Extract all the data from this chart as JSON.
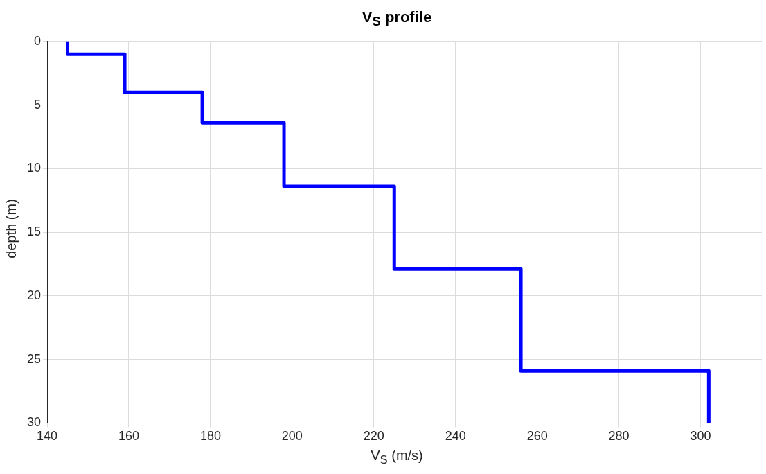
{
  "chart_data": {
    "type": "line",
    "title": "V$_{S}$ profile",
    "xlabel": "V$_{S}$ (m/s)",
    "ylabel": "depth (m)",
    "series": [
      {
        "color": "#0000ff",
        "x": [
          145,
          145,
          159,
          159,
          178,
          178,
          198,
          198,
          225,
          225,
          256,
          256,
          302,
          302
        ],
        "values": [
          0,
          1,
          1,
          4,
          4,
          6.4,
          6.4,
          11.4,
          11.4,
          17.9,
          17.9,
          25.9,
          25.9,
          30
        ]
      }
    ],
    "xlim": [
      140,
      315
    ],
    "xticks": [
      140,
      160,
      180,
      200,
      220,
      240,
      260,
      280,
      300
    ],
    "ylim": [
      30,
      0
    ],
    "yticks": [
      0,
      5,
      10,
      15,
      20,
      25,
      30
    ],
    "grid": true,
    "legend": false,
    "marker": "none",
    "line_style": "solid"
  }
}
